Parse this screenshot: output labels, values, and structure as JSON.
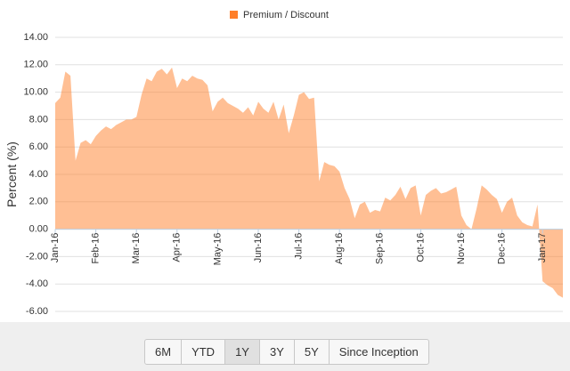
{
  "chart_data": {
    "type": "area",
    "legend_title": "Premium / Discount",
    "y_label": "Percent (%)",
    "categories": [
      "Jan-16",
      null,
      null,
      null,
      null,
      null,
      null,
      null,
      "Feb-16",
      null,
      null,
      null,
      null,
      null,
      null,
      null,
      "Mar-16",
      null,
      null,
      null,
      null,
      null,
      null,
      null,
      "Apr-16",
      null,
      null,
      null,
      null,
      null,
      null,
      null,
      "May-16",
      null,
      null,
      null,
      null,
      null,
      null,
      null,
      "Jun-16",
      null,
      null,
      null,
      null,
      null,
      null,
      null,
      "Jul-16",
      null,
      null,
      null,
      null,
      null,
      null,
      null,
      "Aug-16",
      null,
      null,
      null,
      null,
      null,
      null,
      null,
      "Sep-16",
      null,
      null,
      null,
      null,
      null,
      null,
      null,
      "Oct-16",
      null,
      null,
      null,
      null,
      null,
      null,
      null,
      "Nov-16",
      null,
      null,
      null,
      null,
      null,
      null,
      null,
      "Dec-16",
      null,
      null,
      null,
      null,
      null,
      null,
      null,
      "Jan-17",
      null,
      null,
      null,
      null
    ],
    "series": [
      {
        "name": "Premium / Discount",
        "color": "#ff7f2a",
        "values": [
          9.2,
          9.6,
          11.5,
          11.2,
          5.0,
          6.3,
          6.5,
          6.2,
          6.8,
          7.2,
          7.5,
          7.3,
          7.6,
          7.8,
          8.0,
          8.0,
          8.2,
          9.8,
          11.0,
          10.8,
          11.5,
          11.7,
          11.3,
          11.8,
          10.3,
          11.0,
          10.8,
          11.2,
          11.0,
          10.9,
          10.5,
          8.6,
          9.3,
          9.6,
          9.2,
          9.0,
          8.8,
          8.5,
          8.9,
          8.3,
          9.3,
          8.8,
          8.5,
          9.3,
          8.0,
          9.1,
          7.0,
          8.3,
          9.8,
          10.0,
          9.5,
          9.6,
          3.5,
          4.9,
          4.7,
          4.6,
          4.2,
          3.0,
          2.2,
          0.8,
          1.8,
          2.0,
          1.2,
          1.4,
          1.3,
          2.3,
          2.1,
          2.5,
          3.1,
          2.2,
          3.0,
          3.2,
          1.0,
          2.5,
          2.8,
          3.0,
          2.6,
          2.7,
          2.9,
          3.1,
          1.0,
          0.3,
          0.0,
          1.5,
          3.2,
          2.9,
          2.5,
          2.2,
          1.2,
          2.0,
          2.3,
          1.0,
          0.5,
          0.3,
          0.2,
          1.8,
          -3.8,
          -4.1,
          -4.3,
          -4.8,
          -5.0
        ]
      }
    ],
    "ylim": [
      -6,
      14
    ],
    "yticks": [
      {
        "value": -6,
        "label": "-6.00"
      },
      {
        "value": -4,
        "label": "-4.00"
      },
      {
        "value": -2,
        "label": "-2.00"
      },
      {
        "value": 0,
        "label": "0.00"
      },
      {
        "value": 2,
        "label": "2.00"
      },
      {
        "value": 4,
        "label": "4.00"
      },
      {
        "value": 6,
        "label": "6.00"
      },
      {
        "value": 8,
        "label": "8.00"
      },
      {
        "value": 10,
        "label": "10.00"
      },
      {
        "value": 12,
        "label": "12.00"
      },
      {
        "value": 14,
        "label": "14.00"
      }
    ],
    "grid": true
  },
  "range_selector": {
    "buttons": [
      "6M",
      "YTD",
      "1Y",
      "3Y",
      "5Y",
      "Since Inception"
    ],
    "selected": 2
  }
}
